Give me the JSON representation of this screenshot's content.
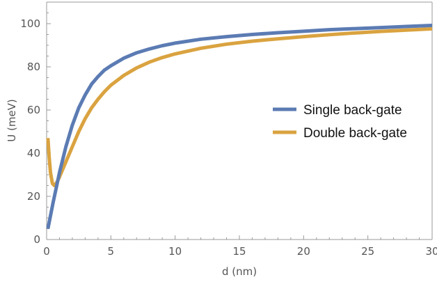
{
  "chart_data": {
    "type": "line",
    "xlabel": "d (nm)",
    "ylabel": "U (meV)",
    "xlim": [
      0,
      30
    ],
    "ylim": [
      0,
      110
    ],
    "xticks": [
      0,
      5,
      10,
      15,
      20,
      25,
      30
    ],
    "yticks": [
      0,
      20,
      40,
      60,
      80,
      100
    ],
    "grid": false,
    "legend_position": "center-right",
    "series": [
      {
        "name": "Single back-gate",
        "color": "#5b7bb3",
        "points": [
          [
            0.1,
            5
          ],
          [
            0.3,
            11
          ],
          [
            0.5,
            17
          ],
          [
            0.75,
            24
          ],
          [
            1,
            31
          ],
          [
            1.5,
            43
          ],
          [
            2,
            53
          ],
          [
            2.5,
            61
          ],
          [
            3,
            67
          ],
          [
            3.5,
            72
          ],
          [
            4,
            75.5
          ],
          [
            4.5,
            78.5
          ],
          [
            5,
            80.5
          ],
          [
            6,
            84
          ],
          [
            7,
            86.5
          ],
          [
            8,
            88.3
          ],
          [
            9,
            89.8
          ],
          [
            10,
            91
          ],
          [
            12,
            92.8
          ],
          [
            14,
            94
          ],
          [
            16,
            95
          ],
          [
            18,
            95.8
          ],
          [
            20,
            96.5
          ],
          [
            22,
            97.2
          ],
          [
            24,
            97.7
          ],
          [
            26,
            98.2
          ],
          [
            28,
            98.7
          ],
          [
            30,
            99.2
          ]
        ]
      },
      {
        "name": "Double back-gate",
        "color": "#daa340",
        "points": [
          [
            0.1,
            47
          ],
          [
            0.2,
            38
          ],
          [
            0.3,
            31
          ],
          [
            0.45,
            26
          ],
          [
            0.6,
            25
          ],
          [
            0.8,
            26.5
          ],
          [
            1,
            29
          ],
          [
            1.5,
            36
          ],
          [
            2,
            43
          ],
          [
            2.5,
            50
          ],
          [
            3,
            56
          ],
          [
            3.5,
            61
          ],
          [
            4,
            65
          ],
          [
            4.5,
            68.5
          ],
          [
            5,
            71.5
          ],
          [
            6,
            76
          ],
          [
            7,
            79.5
          ],
          [
            8,
            82.2
          ],
          [
            9,
            84.3
          ],
          [
            10,
            86
          ],
          [
            12,
            88.6
          ],
          [
            14,
            90.5
          ],
          [
            16,
            91.9
          ],
          [
            18,
            93
          ],
          [
            20,
            94
          ],
          [
            22,
            94.9
          ],
          [
            24,
            95.7
          ],
          [
            26,
            96.4
          ],
          [
            28,
            97
          ],
          [
            30,
            97.6
          ]
        ]
      }
    ]
  }
}
